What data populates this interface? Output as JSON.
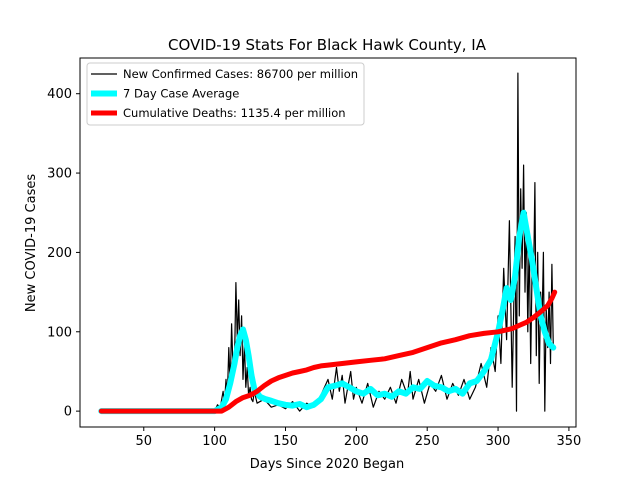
{
  "chart_data": {
    "type": "line",
    "title": "COVID-19 Stats For Black Hawk County, IA",
    "xlabel": "Days Since 2020 Began",
    "ylabel": "New COVID-19 Cases",
    "xlim": [
      5,
      355
    ],
    "ylim": [
      -20,
      445
    ],
    "x_ticks": [
      50,
      100,
      150,
      200,
      250,
      300,
      350
    ],
    "y_ticks": [
      0,
      100,
      200,
      300,
      400
    ],
    "grid": false,
    "legend_position": "upper-left",
    "series": [
      {
        "name": "New Confirmed Cases: 86700 per million",
        "color": "#000000",
        "x": [
          20,
          40,
          60,
          80,
          95,
          100,
          102,
          104,
          106,
          107,
          108,
          109,
          110,
          111,
          112,
          113,
          114,
          115,
          116,
          117,
          118,
          119,
          120,
          121,
          122,
          123,
          124,
          125,
          126,
          127,
          128,
          130,
          135,
          140,
          145,
          150,
          155,
          160,
          165,
          170,
          175,
          180,
          183,
          186,
          188,
          190,
          192,
          194,
          196,
          198,
          200,
          204,
          208,
          212,
          216,
          220,
          224,
          228,
          232,
          236,
          238,
          240,
          244,
          248,
          252,
          256,
          260,
          264,
          268,
          272,
          276,
          280,
          284,
          288,
          292,
          295,
          298,
          300,
          302,
          304,
          306,
          308,
          310,
          312,
          313,
          314,
          315,
          316,
          317,
          318,
          319,
          320,
          321,
          322,
          323,
          324,
          325,
          326,
          327,
          328,
          329,
          330,
          331,
          332,
          333,
          334,
          335,
          336,
          337,
          338,
          339
        ],
        "y": [
          0,
          0,
          0,
          0,
          0,
          0,
          8,
          5,
          25,
          10,
          40,
          20,
          80,
          30,
          110,
          50,
          60,
          162,
          90,
          140,
          70,
          120,
          40,
          85,
          30,
          55,
          20,
          30,
          15,
          12,
          25,
          10,
          15,
          5,
          8,
          3,
          12,
          0,
          10,
          5,
          20,
          40,
          15,
          55,
          25,
          45,
          10,
          30,
          50,
          15,
          30,
          10,
          35,
          5,
          25,
          15,
          30,
          10,
          40,
          20,
          50,
          15,
          40,
          10,
          35,
          25,
          45,
          15,
          35,
          20,
          40,
          15,
          30,
          60,
          30,
          80,
          50,
          120,
          60,
          180,
          90,
          240,
          30,
          220,
          0,
          426,
          120,
          280,
          180,
          310,
          150,
          250,
          100,
          220,
          60,
          180,
          160,
          288,
          70,
          200,
          35,
          150,
          110,
          200,
          0,
          130,
          80,
          150,
          60,
          185,
          80
        ]
      },
      {
        "name": "7 Day Case Average",
        "color": "#00ffff",
        "x": [
          20,
          40,
          60,
          80,
          95,
          100,
          105,
          108,
          111,
          114,
          116,
          118,
          120,
          122,
          124,
          126,
          128,
          132,
          136,
          140,
          145,
          150,
          155,
          160,
          165,
          170,
          175,
          180,
          185,
          190,
          195,
          200,
          205,
          210,
          215,
          220,
          225,
          230,
          235,
          240,
          245,
          250,
          255,
          260,
          265,
          270,
          275,
          280,
          285,
          290,
          295,
          300,
          303,
          306,
          309,
          312,
          315,
          318,
          321,
          324,
          327,
          330,
          333,
          336,
          339
        ],
        "y": [
          0,
          0,
          0,
          0,
          0,
          0,
          5,
          15,
          35,
          60,
          80,
          95,
          103,
          90,
          70,
          45,
          28,
          18,
          15,
          13,
          10,
          8,
          7,
          9,
          5,
          8,
          15,
          30,
          32,
          35,
          30,
          25,
          22,
          28,
          20,
          22,
          18,
          25,
          22,
          30,
          28,
          38,
          32,
          30,
          25,
          28,
          22,
          35,
          38,
          50,
          65,
          100,
          125,
          155,
          140,
          170,
          220,
          250,
          220,
          190,
          155,
          120,
          100,
          85,
          80
        ]
      },
      {
        "name": "Cumulative Deaths: 1135.4 per million",
        "color": "#ff0000",
        "x": [
          20,
          40,
          60,
          80,
          95,
          100,
          105,
          110,
          115,
          120,
          125,
          130,
          135,
          140,
          145,
          150,
          155,
          160,
          165,
          170,
          175,
          180,
          190,
          200,
          210,
          220,
          230,
          240,
          250,
          260,
          270,
          280,
          290,
          300,
          310,
          315,
          320,
          325,
          330,
          335,
          338,
          340
        ],
        "y": [
          0,
          0,
          0,
          0,
          0,
          0,
          0,
          5,
          12,
          17,
          20,
          25,
          32,
          38,
          42,
          45,
          48,
          50,
          52,
          55,
          57,
          58,
          60,
          62,
          64,
          66,
          70,
          74,
          80,
          86,
          90,
          95,
          98,
          100,
          104,
          108,
          112,
          118,
          125,
          133,
          142,
          150
        ]
      }
    ]
  }
}
